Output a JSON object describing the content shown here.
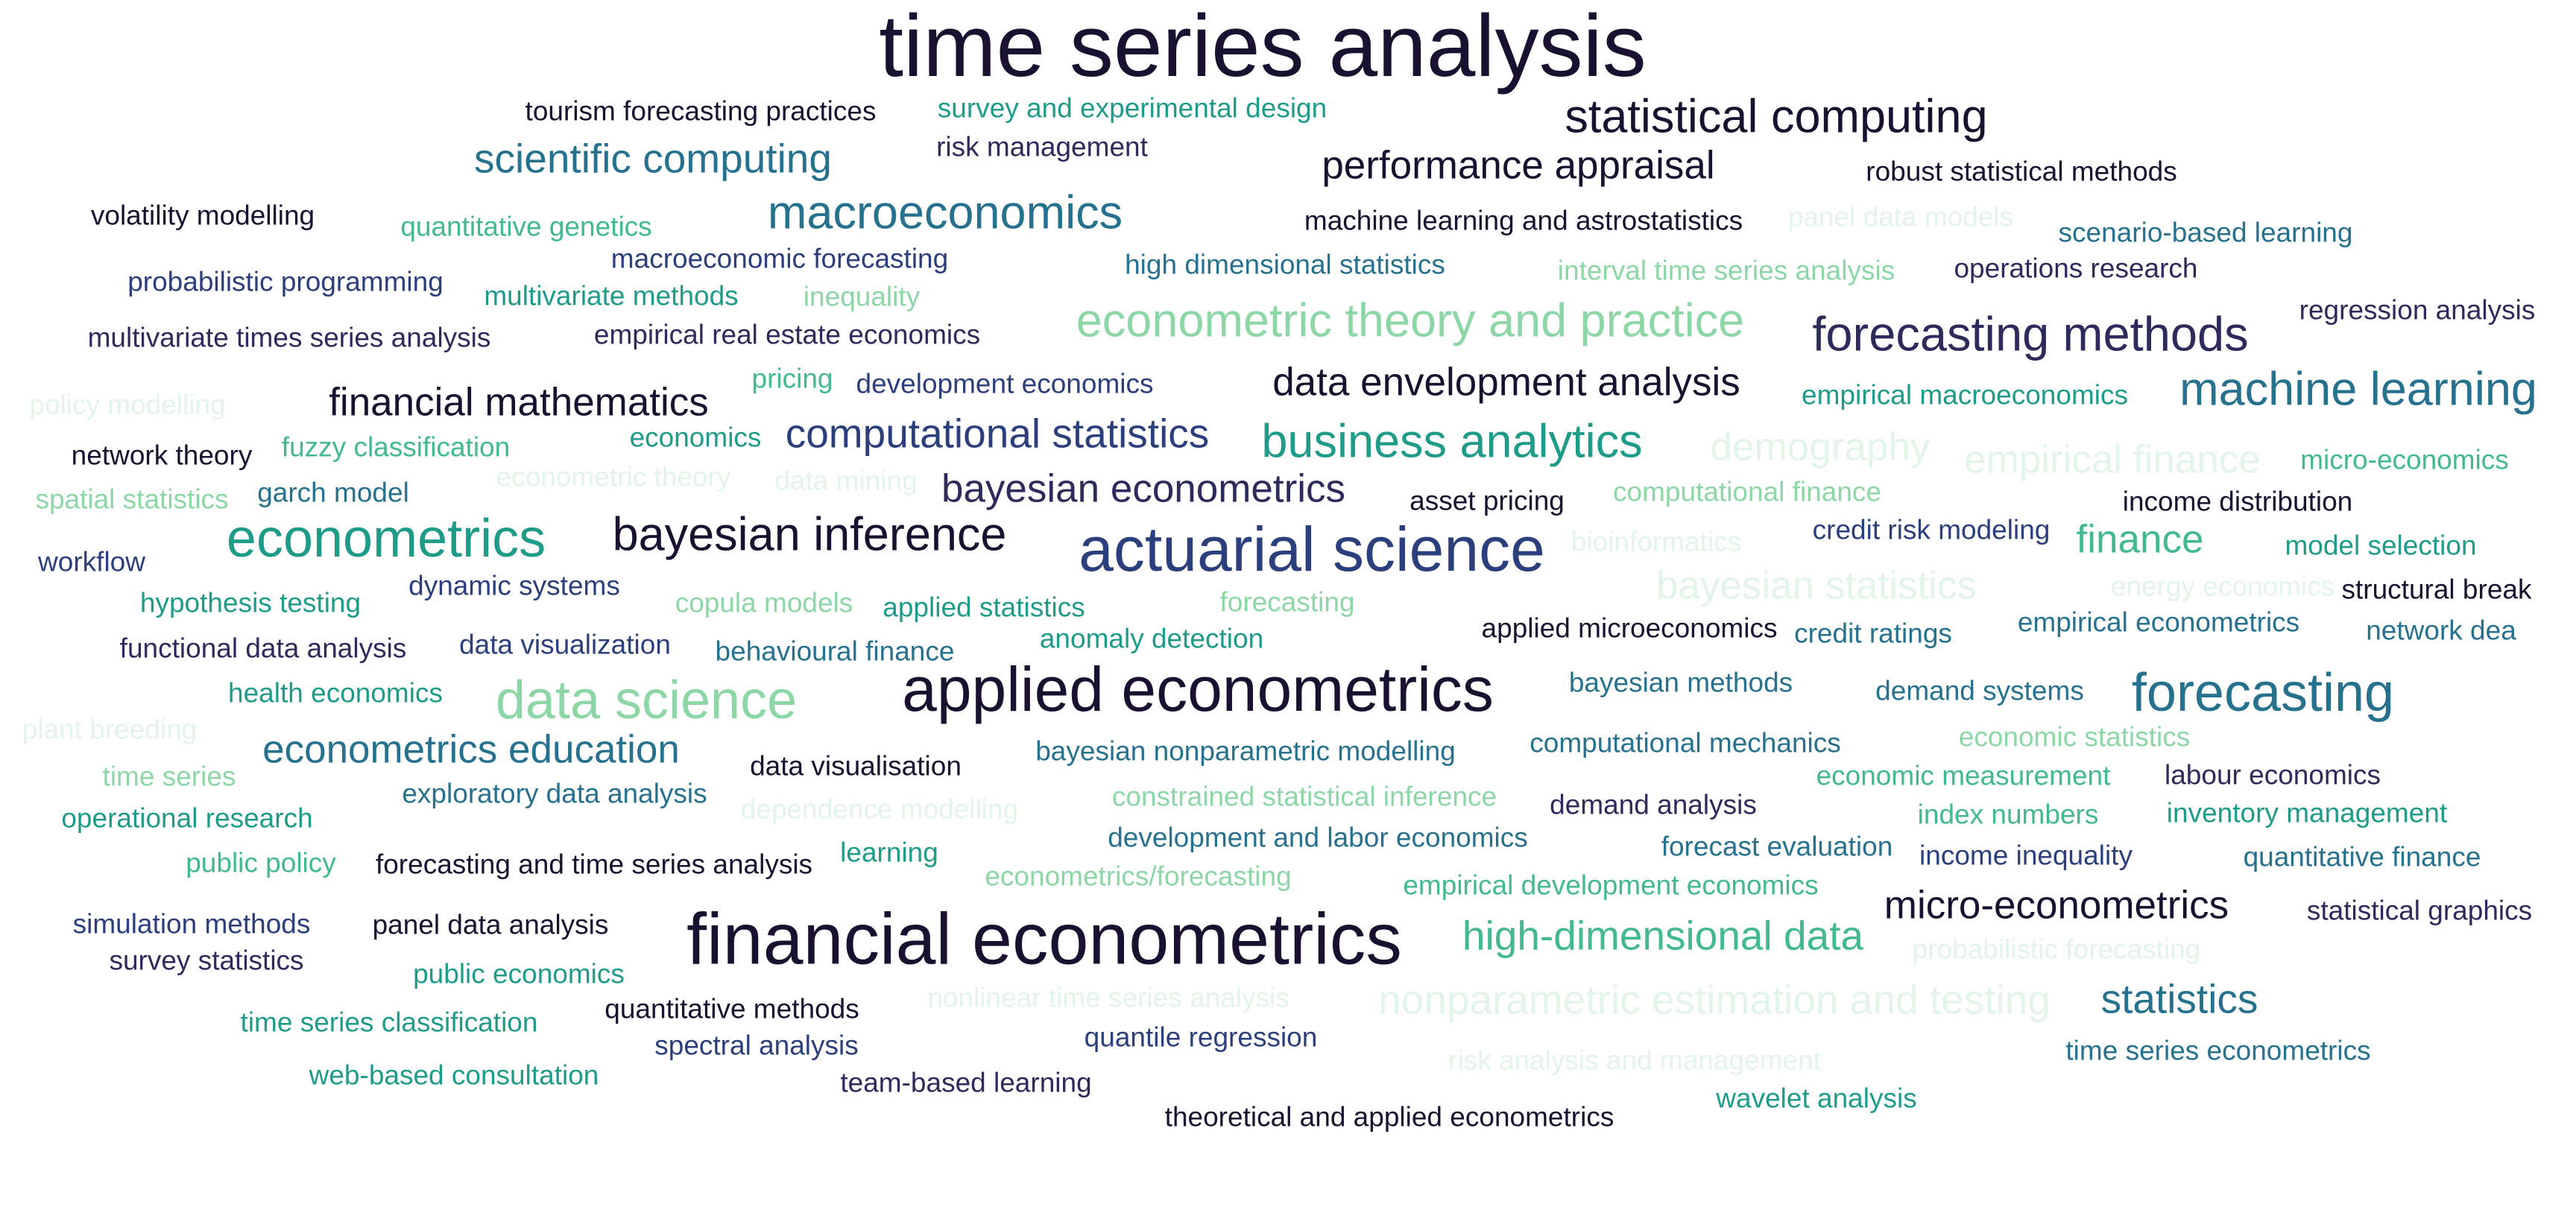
{
  "words": [
    {
      "text": "time series analysis",
      "tier": 0
    },
    {
      "text": "tourism forecasting practices",
      "tier": 0
    },
    {
      "text": "survey and experimental design",
      "tier": 4
    },
    {
      "text": "statistical computing",
      "tier": 0
    },
    {
      "text": "scientific computing",
      "tier": 3
    },
    {
      "text": "risk management",
      "tier": 1
    },
    {
      "text": "performance appraisal",
      "tier": 0
    },
    {
      "text": "robust statistical methods",
      "tier": 0
    },
    {
      "text": "volatility modelling",
      "tier": 0
    },
    {
      "text": "quantitative genetics",
      "tier": 5
    },
    {
      "text": "macroeconomics",
      "tier": 3
    },
    {
      "text": "machine learning and astrostatistics",
      "tier": 0
    },
    {
      "text": "panel data models",
      "tier": 7
    },
    {
      "text": "scenario-based learning",
      "tier": 3
    },
    {
      "text": "macroeconomic forecasting",
      "tier": 2
    },
    {
      "text": "probabilistic programming",
      "tier": 2
    },
    {
      "text": "high dimensional statistics",
      "tier": 3
    },
    {
      "text": "interval time series analysis",
      "tier": 6
    },
    {
      "text": "operations research",
      "tier": 1
    },
    {
      "text": "multivariate methods",
      "tier": 4
    },
    {
      "text": "inequality",
      "tier": 6
    },
    {
      "text": "regression analysis",
      "tier": 1
    },
    {
      "text": "econometric theory and practice",
      "tier": 6
    },
    {
      "text": "forecasting methods",
      "tier": 1
    },
    {
      "text": "multivariate times series analysis",
      "tier": 1
    },
    {
      "text": "empirical real estate economics",
      "tier": 1
    },
    {
      "text": "pricing",
      "tier": 5
    },
    {
      "text": "development economics",
      "tier": 2
    },
    {
      "text": "data envelopment analysis",
      "tier": 0
    },
    {
      "text": "empirical macroeconomics",
      "tier": 4
    },
    {
      "text": "machine learning",
      "tier": 3
    },
    {
      "text": "policy modelling",
      "tier": 7
    },
    {
      "text": "financial mathematics",
      "tier": 0
    },
    {
      "text": "network theory",
      "tier": 0
    },
    {
      "text": "fuzzy classification",
      "tier": 5
    },
    {
      "text": "economics",
      "tier": 4
    },
    {
      "text": "computational statistics",
      "tier": 2
    },
    {
      "text": "business analytics",
      "tier": 4
    },
    {
      "text": "demography",
      "tier": 7
    },
    {
      "text": "empirical finance",
      "tier": 7
    },
    {
      "text": "micro-economics",
      "tier": 5
    },
    {
      "text": "spatial statistics",
      "tier": 6
    },
    {
      "text": "garch model",
      "tier": 3
    },
    {
      "text": "econometric theory",
      "tier": 7
    },
    {
      "text": "data mining",
      "tier": 7
    },
    {
      "text": "bayesian econometrics",
      "tier": 1
    },
    {
      "text": "asset pricing",
      "tier": 0
    },
    {
      "text": "computational finance",
      "tier": 6
    },
    {
      "text": "income distribution",
      "tier": 0
    },
    {
      "text": "econometrics",
      "tier": 4
    },
    {
      "text": "bayesian inference",
      "tier": 0
    },
    {
      "text": "actuarial science",
      "tier": 2
    },
    {
      "text": "bioinformatics",
      "tier": 7
    },
    {
      "text": "credit risk modeling",
      "tier": 2
    },
    {
      "text": "finance",
      "tier": 5
    },
    {
      "text": "model selection",
      "tier": 4
    },
    {
      "text": "workflow",
      "tier": 2
    },
    {
      "text": "dynamic systems",
      "tier": 2
    },
    {
      "text": "bayesian statistics",
      "tier": 7
    },
    {
      "text": "energy economics",
      "tier": 7
    },
    {
      "text": "structural break",
      "tier": 0
    },
    {
      "text": "hypothesis testing",
      "tier": 4
    },
    {
      "text": "copula models",
      "tier": 6
    },
    {
      "text": "applied statistics",
      "tier": 4
    },
    {
      "text": "forecasting",
      "tier": 6
    },
    {
      "text": "applied microeconomics",
      "tier": 0
    },
    {
      "text": "credit ratings",
      "tier": 3
    },
    {
      "text": "empirical econometrics",
      "tier": 3
    },
    {
      "text": "network dea",
      "tier": 3
    },
    {
      "text": "functional data analysis",
      "tier": 1
    },
    {
      "text": "data visualization",
      "tier": 2
    },
    {
      "text": "behavioural finance",
      "tier": 3
    },
    {
      "text": "anomaly detection",
      "tier": 4
    },
    {
      "text": "bayesian methods",
      "tier": 3
    },
    {
      "text": "demand systems",
      "tier": 3
    },
    {
      "text": "health economics",
      "tier": 4
    },
    {
      "text": "data science",
      "tier": 6
    },
    {
      "text": "applied econometrics",
      "tier": 0
    },
    {
      "text": "forecasting",
      "tier": 3
    },
    {
      "text": "plant breeding",
      "tier": 7
    },
    {
      "text": "economic statistics",
      "tier": 6
    },
    {
      "text": "econometrics education",
      "tier": 3
    },
    {
      "text": "computational mechanics",
      "tier": 3
    },
    {
      "text": "time series",
      "tier": 6
    },
    {
      "text": "data visualisation",
      "tier": 0
    },
    {
      "text": "bayesian nonparametric modelling",
      "tier": 3
    },
    {
      "text": "economic measurement",
      "tier": 5
    },
    {
      "text": "labour economics",
      "tier": 1
    },
    {
      "text": "operational research",
      "tier": 4
    },
    {
      "text": "exploratory data analysis",
      "tier": 3
    },
    {
      "text": "dependence modelling",
      "tier": 7
    },
    {
      "text": "constrained statistical inference",
      "tier": 6
    },
    {
      "text": "demand analysis",
      "tier": 1
    },
    {
      "text": "index numbers",
      "tier": 5
    },
    {
      "text": "inventory management",
      "tier": 4
    },
    {
      "text": "development and labor economics",
      "tier": 3
    },
    {
      "text": "forecast evaluation",
      "tier": 3
    },
    {
      "text": "public policy",
      "tier": 5
    },
    {
      "text": "forecasting and time series analysis",
      "tier": 0
    },
    {
      "text": "learning",
      "tier": 4
    },
    {
      "text": "income inequality",
      "tier": 2
    },
    {
      "text": "quantitative finance",
      "tier": 3
    },
    {
      "text": "econometrics/forecasting",
      "tier": 6
    },
    {
      "text": "empirical development economics",
      "tier": 5
    },
    {
      "text": "simulation methods",
      "tier": 2
    },
    {
      "text": "micro-econometrics",
      "tier": 0
    },
    {
      "text": "panel data analysis",
      "tier": 0
    },
    {
      "text": "statistical graphics",
      "tier": 1
    },
    {
      "text": "financial econometrics",
      "tier": 0
    },
    {
      "text": "high-dimensional data",
      "tier": 5
    },
    {
      "text": "survey statistics",
      "tier": 1
    },
    {
      "text": "probabilistic forecasting",
      "tier": 7
    },
    {
      "text": "public economics",
      "tier": 4
    },
    {
      "text": "quantitative methods",
      "tier": 0
    },
    {
      "text": "nonlinear time series analysis",
      "tier": 7
    },
    {
      "text": "nonparametric estimation and testing",
      "tier": 7
    },
    {
      "text": "statistics",
      "tier": 3
    },
    {
      "text": "time series classification",
      "tier": 4
    },
    {
      "text": "spectral analysis",
      "tier": 2
    },
    {
      "text": "quantile regression",
      "tier": 2
    },
    {
      "text": "risk analysis and management",
      "tier": 7
    },
    {
      "text": "time series econometrics",
      "tier": 3
    },
    {
      "text": "web-based consultation",
      "tier": 4
    },
    {
      "text": "team-based learning",
      "tier": 1
    },
    {
      "text": "wavelet analysis",
      "tier": 4
    },
    {
      "text": "theoretical and applied econometrics",
      "tier": 0
    }
  ]
}
